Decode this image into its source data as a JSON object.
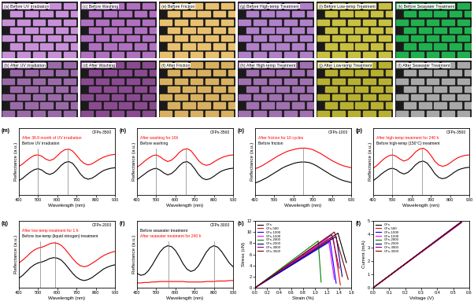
{
  "images": [
    {
      "label": "(a)",
      "text": "Before UV irradiation",
      "color": "#c890d8"
    },
    {
      "label": "(b)",
      "text": "After UV irradiation",
      "color": "#9a6aa8"
    },
    {
      "label": "(c)",
      "text": "Before Washing",
      "color": "#b070c0"
    },
    {
      "label": "(d)",
      "text": "After Washing",
      "color": "#8a4a90"
    },
    {
      "label": "(e)",
      "text": "Before Friction",
      "color": "#e8c070"
    },
    {
      "label": "(f)",
      "text": "After Friction",
      "color": "#d8b060"
    },
    {
      "label": "(g)",
      "text": "Before High-temp Treatment",
      "color": "#b080c8"
    },
    {
      "label": "(h)",
      "text": "After High-temp Treatment",
      "color": "#a070b0"
    },
    {
      "label": "(i)",
      "text": "Before Low-temp Treatment",
      "color": "#c8c040"
    },
    {
      "label": "(j)",
      "text": "After Low-temp Treatment",
      "color": "#b8b030"
    },
    {
      "label": "(k)",
      "text": "Before Seawater Treatment",
      "color": "#20b050"
    },
    {
      "label": "(l)",
      "text": "After Seawater Treatment",
      "color": "#a8a8a8"
    }
  ],
  "chart_data": [
    {
      "type": "line",
      "label": "(m)",
      "sample": "CFPs-3500",
      "x_label": "Wavelength (nm)",
      "y_label": "Reflectance (a.u.)",
      "x": [
        400,
        420,
        440,
        460,
        480,
        500,
        520,
        540,
        560,
        580,
        600,
        620,
        640,
        660,
        680,
        700,
        720,
        740,
        760,
        780,
        800,
        820,
        840,
        860,
        880,
        900
      ],
      "xlim": [
        400,
        900
      ],
      "xticks": [
        400,
        500,
        600,
        700,
        800,
        900
      ],
      "ylim": [
        0,
        14
      ],
      "yticks": [],
      "tick_labels": "x",
      "peaks": [
        500,
        655
      ],
      "series": [
        {
          "name": "After 36.9 month of UV irradiation",
          "color": "#ff0000",
          "values": [
            6.0,
            6.5,
            7.2,
            7.8,
            8.3,
            8.4,
            8.1,
            7.5,
            7.2,
            7.5,
            8.2,
            9.0,
            9.5,
            9.6,
            9.2,
            8.3,
            7.3,
            6.6,
            6.3,
            6.5,
            7.0,
            7.5,
            7.9,
            8.2,
            8.4,
            8.5
          ]
        },
        {
          "name": "Before UV irradiation",
          "color": "#000000",
          "values": [
            3.0,
            3.5,
            4.2,
            4.8,
            5.3,
            5.5,
            5.2,
            4.6,
            4.3,
            4.6,
            5.3,
            6.2,
            6.8,
            7.0,
            6.6,
            5.6,
            4.4,
            3.6,
            3.3,
            3.5,
            4.0,
            4.6,
            5.1,
            5.4,
            5.6,
            5.7
          ]
        }
      ]
    },
    {
      "type": "line",
      "label": "(n)",
      "sample": "CFPs-3500",
      "x_label": "Wavelength (nm)",
      "y_label": "Reflectance (a.u.)",
      "x": [
        400,
        420,
        440,
        460,
        480,
        500,
        520,
        540,
        560,
        580,
        600,
        620,
        640,
        660,
        680,
        700,
        720,
        740,
        760,
        780,
        800,
        820,
        840,
        860,
        880,
        900
      ],
      "xlim": [
        400,
        900
      ],
      "xticks": [
        400,
        500,
        600,
        700,
        800,
        900
      ],
      "ylim": [
        0,
        14
      ],
      "yticks": [],
      "tick_labels": "x",
      "peaks": [
        500,
        655
      ],
      "series": [
        {
          "name": "After washing for 10h",
          "color": "#ff0000",
          "values": [
            5.8,
            6.4,
            7.1,
            7.7,
            8.2,
            8.4,
            8.0,
            7.4,
            7.0,
            7.3,
            8.0,
            8.9,
            9.5,
            9.7,
            9.3,
            8.3,
            7.2,
            6.5,
            6.2,
            6.4,
            6.9,
            7.4,
            7.8,
            8.1,
            8.3,
            8.4
          ]
        },
        {
          "name": "Before washing",
          "color": "#000000",
          "values": [
            3.2,
            3.8,
            4.4,
            5.0,
            5.4,
            5.6,
            5.2,
            4.6,
            4.2,
            4.5,
            5.2,
            6.1,
            6.8,
            7.0,
            6.5,
            5.5,
            4.3,
            3.5,
            3.2,
            3.4,
            3.9,
            4.5,
            5.0,
            5.3,
            5.5,
            5.6
          ]
        }
      ]
    },
    {
      "type": "line",
      "label": "(o)",
      "sample": "CFPs-1000",
      "x_label": "Wavelength (nm)",
      "y_label": "Reflectance (a.u.)",
      "x": [
        400,
        420,
        440,
        460,
        480,
        500,
        520,
        540,
        560,
        580,
        600,
        620,
        640,
        660,
        680,
        700,
        720,
        740,
        760,
        780,
        800,
        820,
        840,
        860,
        880,
        900
      ],
      "xlim": [
        400,
        900
      ],
      "xticks": [
        400,
        500,
        600,
        700,
        800,
        900
      ],
      "ylim": [
        0,
        14
      ],
      "yticks": [],
      "tick_labels": "x",
      "peaks": [
        650
      ],
      "series": [
        {
          "name": "After friction for 10 cycles",
          "color": "#ff0000",
          "values": [
            5.5,
            5.8,
            6.2,
            6.7,
            7.2,
            7.7,
            8.2,
            8.6,
            9.0,
            9.3,
            9.5,
            9.7,
            9.8,
            9.8,
            9.7,
            9.5,
            9.1,
            8.7,
            8.2,
            7.7,
            7.2,
            6.8,
            6.4,
            6.1,
            5.9,
            5.7
          ]
        },
        {
          "name": "Before friction",
          "color": "#000000",
          "values": [
            2.5,
            2.8,
            3.2,
            3.6,
            4.1,
            4.6,
            5.1,
            5.6,
            6.0,
            6.3,
            6.6,
            6.8,
            6.9,
            6.9,
            6.8,
            6.5,
            6.1,
            5.6,
            5.1,
            4.6,
            4.1,
            3.7,
            3.3,
            3.0,
            2.8,
            2.6
          ]
        }
      ]
    },
    {
      "type": "line",
      "label": "(p)",
      "sample": "CFPs-3500",
      "x_label": "Wavelength (nm)",
      "y_label": "Reflectance (a.u.)",
      "x": [
        400,
        420,
        440,
        460,
        480,
        500,
        520,
        540,
        560,
        580,
        600,
        620,
        640,
        660,
        680,
        700,
        720,
        740,
        760,
        780,
        800,
        820,
        840,
        860,
        880,
        900
      ],
      "xlim": [
        400,
        900
      ],
      "xticks": [
        400,
        500,
        600,
        700,
        800,
        900
      ],
      "ylim": [
        0,
        14
      ],
      "yticks": [],
      "tick_labels": "x",
      "peaks": [
        500,
        655
      ],
      "series": [
        {
          "name": "After high-temp treatment for 240 h",
          "color": "#ff0000",
          "values": [
            5.6,
            6.2,
            7.0,
            7.7,
            8.2,
            8.4,
            8.1,
            7.5,
            7.1,
            7.4,
            8.1,
            9.0,
            9.6,
            9.8,
            9.3,
            8.3,
            7.1,
            6.3,
            6.0,
            6.2,
            6.7,
            7.3,
            7.8,
            8.1,
            8.3,
            8.4
          ]
        },
        {
          "name": "Before high-temp (150°C) treatment",
          "color": "#000000",
          "values": [
            3.0,
            3.6,
            4.3,
            4.9,
            5.4,
            5.6,
            5.3,
            4.7,
            4.4,
            4.7,
            5.4,
            6.3,
            6.9,
            7.1,
            6.7,
            5.7,
            4.5,
            3.7,
            3.4,
            3.6,
            4.1,
            4.7,
            5.2,
            5.5,
            5.7,
            5.8
          ]
        }
      ]
    },
    {
      "type": "line",
      "label": "(q)",
      "sample": "CFPs-2000",
      "x_label": "Wavelength (nm)",
      "y_label": "Reflectance (a.u.)",
      "x": [
        400,
        420,
        440,
        460,
        480,
        500,
        520,
        540,
        560,
        580,
        600,
        620,
        640,
        660,
        680,
        700,
        720,
        740,
        760,
        780,
        800,
        820,
        840,
        860,
        880,
        900
      ],
      "xlim": [
        400,
        900
      ],
      "xticks": [
        400,
        500,
        600,
        700,
        800,
        900
      ],
      "ylim": [
        0,
        14
      ],
      "yticks": [],
      "tick_labels": "x",
      "peaks": [
        510,
        590
      ],
      "series": [
        {
          "name": "After low-temp treatment for 1 h",
          "color": "#ff0000",
          "values": [
            5.2,
            5.8,
            6.5,
            7.3,
            7.9,
            8.3,
            8.5,
            8.8,
            9.2,
            9.4,
            9.3,
            8.9,
            8.1,
            7.1,
            6.1,
            5.2,
            4.6,
            4.4,
            4.6,
            5.1,
            5.6,
            6.2,
            6.7,
            7.1,
            7.4,
            7.6
          ]
        },
        {
          "name": "Before low-temp (liquid nitrogen) treatment",
          "color": "#000000",
          "values": [
            2.0,
            2.6,
            3.4,
            4.2,
            4.8,
            5.2,
            5.4,
            5.7,
            6.1,
            6.3,
            6.2,
            5.8,
            5.0,
            4.0,
            3.0,
            2.2,
            1.7,
            1.5,
            1.7,
            2.1,
            2.7,
            3.3,
            3.9,
            4.3,
            4.6,
            4.8
          ]
        }
      ]
    },
    {
      "type": "line",
      "label": "(r)",
      "sample": "CFPs-3000",
      "x_label": "Wavelength (nm)",
      "y_label": "Reflectance (a.u.)",
      "x": [
        400,
        420,
        440,
        460,
        480,
        500,
        520,
        540,
        560,
        580,
        600,
        620,
        640,
        660,
        680,
        700,
        720,
        740,
        760,
        780,
        800,
        820,
        840,
        860,
        880,
        900
      ],
      "xlim": [
        400,
        900
      ],
      "xticks": [
        400,
        500,
        600,
        700,
        800,
        900
      ],
      "ylim": [
        0,
        14
      ],
      "yticks": [],
      "tick_labels": "x",
      "peaks": [
        565,
        800
      ],
      "series": [
        {
          "name": "Before seawater treatment",
          "color": "#000000",
          "values": [
            3.0,
            2.6,
            2.8,
            3.6,
            4.8,
            6.2,
            7.5,
            8.4,
            8.8,
            8.6,
            7.8,
            6.5,
            5.0,
            3.9,
            3.4,
            3.7,
            4.6,
            6.0,
            7.4,
            8.4,
            8.8,
            8.5,
            7.6,
            6.4,
            5.2,
            4.4
          ]
        },
        {
          "name": "After seawater treatment for 240 h",
          "color": "#ff0000",
          "values": [
            1.0,
            1.0,
            1.1,
            1.1,
            1.2,
            1.2,
            1.3,
            1.3,
            1.3,
            1.3,
            1.3,
            1.3,
            1.3,
            1.2,
            1.2,
            1.2,
            1.2,
            1.2,
            1.3,
            1.3,
            1.3,
            1.4,
            1.4,
            1.4,
            1.5,
            1.5
          ]
        }
      ]
    },
    {
      "type": "line",
      "label": "(s)",
      "x_label": "Strain (%)",
      "y_label": "Stress (cN)",
      "xlim": [
        0.0,
        1.6
      ],
      "xticks": [
        0.0,
        0.2,
        0.4,
        0.6,
        0.8,
        1.0,
        1.2,
        1.4,
        1.6
      ],
      "ylim": [
        0,
        12
      ],
      "yticks": [
        0,
        2,
        4,
        6,
        8,
        10,
        12
      ],
      "legend": "upper left",
      "series": [
        {
          "name": "CFs",
          "color": "#000000",
          "x": [
            0.0,
            1.38,
            1.52
          ],
          "values": [
            0,
            9.8,
            4.5
          ]
        },
        {
          "name": "CFs-500",
          "color": "#ff0000",
          "x": [
            0.0,
            1.3,
            1.42
          ],
          "values": [
            0,
            9.0,
            0.5
          ]
        },
        {
          "name": "CFs-1000",
          "color": "#0000ff",
          "x": [
            0.0,
            1.25,
            1.35
          ],
          "values": [
            0,
            8.3,
            0.8
          ]
        },
        {
          "name": "CFs-1500",
          "color": "#ff00ff",
          "x": [
            0.0,
            1.22,
            1.32
          ],
          "values": [
            0,
            8.8,
            1.5
          ]
        },
        {
          "name": "CFs-2000",
          "color": "#008000",
          "x": [
            0.0,
            1.05,
            1.1
          ],
          "values": [
            0,
            8.4,
            1.0
          ]
        },
        {
          "name": "CFs-2500",
          "color": "#000080",
          "x": [
            0.0,
            1.35,
            1.45
          ],
          "values": [
            0,
            9.2,
            2.0
          ]
        },
        {
          "name": "CFs-3000",
          "color": "#800080",
          "x": [
            0.0,
            1.28,
            1.4
          ],
          "values": [
            0,
            9.5,
            3.5
          ]
        },
        {
          "name": "CFs-3500",
          "color": "#800000",
          "x": [
            0.0,
            1.32,
            1.55
          ],
          "values": [
            0,
            10.0,
            1.5
          ]
        }
      ]
    },
    {
      "type": "line",
      "label": "(t)",
      "x_label": "Voltage (V)",
      "y_label": "Current (mA)",
      "xlim": [
        0.0,
        0.6
      ],
      "xticks": [
        0.0,
        0.1,
        0.2,
        0.3,
        0.4,
        0.5,
        0.6
      ],
      "ylim": [
        0,
        5
      ],
      "yticks": [
        0,
        1,
        2,
        3,
        4,
        5
      ],
      "legend": "upper left",
      "series": [
        {
          "name": "CFs",
          "color": "#000000",
          "x": [
            0.0,
            0.55
          ],
          "values": [
            0,
            4.9
          ]
        },
        {
          "name": "CFs-500",
          "color": "#ff0000",
          "x": [
            0.0,
            0.55
          ],
          "values": [
            0,
            4.88
          ]
        },
        {
          "name": "CFs-1000",
          "color": "#0000ff",
          "x": [
            0.0,
            0.55
          ],
          "values": [
            0,
            4.92
          ]
        },
        {
          "name": "CFs-1500",
          "color": "#ff00ff",
          "x": [
            0.0,
            0.55
          ],
          "values": [
            0,
            4.86
          ]
        },
        {
          "name": "CFs-2000",
          "color": "#008000",
          "x": [
            0.0,
            0.55
          ],
          "values": [
            0,
            4.9
          ]
        },
        {
          "name": "CFs-2500",
          "color": "#000080",
          "x": [
            0.0,
            0.55
          ],
          "values": [
            0,
            4.94
          ]
        },
        {
          "name": "CFs-3000",
          "color": "#800080",
          "x": [
            0.0,
            0.55
          ],
          "values": [
            0,
            4.87
          ]
        },
        {
          "name": "CFs-3500",
          "color": "#800000",
          "x": [
            0.0,
            0.55
          ],
          "values": [
            0,
            4.91
          ]
        }
      ]
    }
  ]
}
